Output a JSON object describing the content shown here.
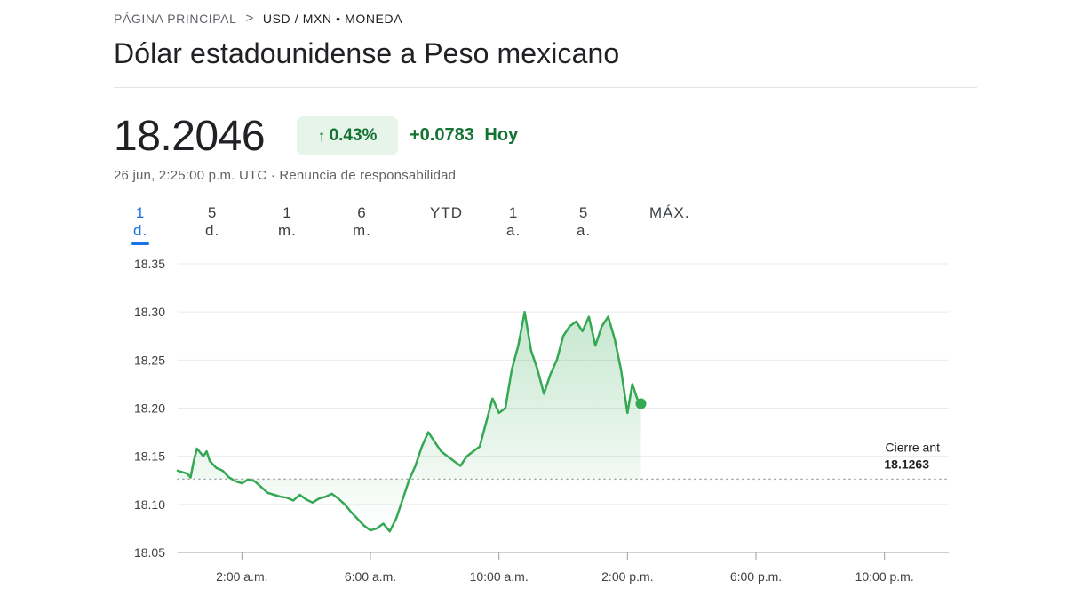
{
  "breadcrumb": {
    "home": "PÁGINA PRINCIPAL",
    "separator": ">",
    "current": "USD / MXN • MONEDA"
  },
  "title": "Dólar estadounidense a Peso mexicano",
  "quote": {
    "price": "18.2046",
    "percent_change": "0.43%",
    "change": "+0.0783",
    "change_period": "Hoy",
    "timestamp": "26 jun, 2:25:00 p.m. UTC",
    "separator": " · ",
    "disclaimer": "Renuncia de responsabilidad"
  },
  "tabs": [
    {
      "label": "1 d.",
      "active": true
    },
    {
      "label": "5 d.",
      "active": false
    },
    {
      "label": "1 m.",
      "active": false
    },
    {
      "label": "6 m.",
      "active": false
    },
    {
      "label": "YTD",
      "active": false
    },
    {
      "label": "1 a.",
      "active": false
    },
    {
      "label": "5 a.",
      "active": false
    },
    {
      "label": "MÁX.",
      "active": false
    }
  ],
  "colors": {
    "line": "#34a853",
    "positive": "#137333",
    "accent": "#1a73e8"
  },
  "chart_data": {
    "type": "area",
    "title": "",
    "xlabel": "",
    "ylabel": "",
    "x_unit": "hours UTC",
    "xlim": [
      0,
      24
    ],
    "ylim": [
      18.05,
      18.35
    ],
    "y_ticks": [
      18.05,
      18.1,
      18.15,
      18.2,
      18.25,
      18.3,
      18.35
    ],
    "y_tick_labels": [
      "18.05",
      "18.10",
      "18.15",
      "18.20",
      "18.25",
      "18.30",
      "18.35"
    ],
    "x_ticks": [
      2,
      6,
      10,
      14,
      18,
      22
    ],
    "x_tick_labels": [
      "2:00 a.m.",
      "6:00 a.m.",
      "10:00 a.m.",
      "2:00 p.m.",
      "6:00 p.m.",
      "10:00 p.m."
    ],
    "grid": true,
    "series": [
      {
        "name": "USD/MXN",
        "x": [
          0,
          0.3,
          0.4,
          0.5,
          0.6,
          0.8,
          0.9,
          1.0,
          1.2,
          1.4,
          1.6,
          1.8,
          2.0,
          2.2,
          2.4,
          2.6,
          2.8,
          3.0,
          3.2,
          3.4,
          3.6,
          3.8,
          4.0,
          4.2,
          4.4,
          4.6,
          4.8,
          5.0,
          5.2,
          5.4,
          5.6,
          5.8,
          6.0,
          6.2,
          6.4,
          6.6,
          6.8,
          7.0,
          7.2,
          7.4,
          7.6,
          7.8,
          8.0,
          8.2,
          8.4,
          8.6,
          8.8,
          9.0,
          9.2,
          9.4,
          9.6,
          9.8,
          10.0,
          10.2,
          10.4,
          10.6,
          10.8,
          11.0,
          11.2,
          11.4,
          11.6,
          11.8,
          12.0,
          12.2,
          12.4,
          12.6,
          12.8,
          13.0,
          13.2,
          13.4,
          13.6,
          13.8,
          14.0,
          14.15,
          14.3,
          14.42
        ],
        "values": [
          18.135,
          18.132,
          18.128,
          18.145,
          18.158,
          18.15,
          18.155,
          18.145,
          18.138,
          18.135,
          18.128,
          18.124,
          18.122,
          18.126,
          18.124,
          18.118,
          18.112,
          18.11,
          18.108,
          18.107,
          18.104,
          18.11,
          18.105,
          18.102,
          18.106,
          18.108,
          18.111,
          18.106,
          18.1,
          18.092,
          18.085,
          18.078,
          18.073,
          18.075,
          18.08,
          18.072,
          18.085,
          18.105,
          18.125,
          18.14,
          18.16,
          18.175,
          18.165,
          18.155,
          18.15,
          18.145,
          18.14,
          18.15,
          18.155,
          18.16,
          18.185,
          18.21,
          18.195,
          18.2,
          18.24,
          18.265,
          18.3,
          18.26,
          18.24,
          18.215,
          18.235,
          18.25,
          18.275,
          18.285,
          18.29,
          18.28,
          18.295,
          18.265,
          18.285,
          18.295,
          18.272,
          18.24,
          18.195,
          18.225,
          18.21,
          18.2046
        ]
      }
    ],
    "reference_line": {
      "label": "Cierre ant",
      "value": 18.1263,
      "value_label": "18.1263"
    }
  }
}
